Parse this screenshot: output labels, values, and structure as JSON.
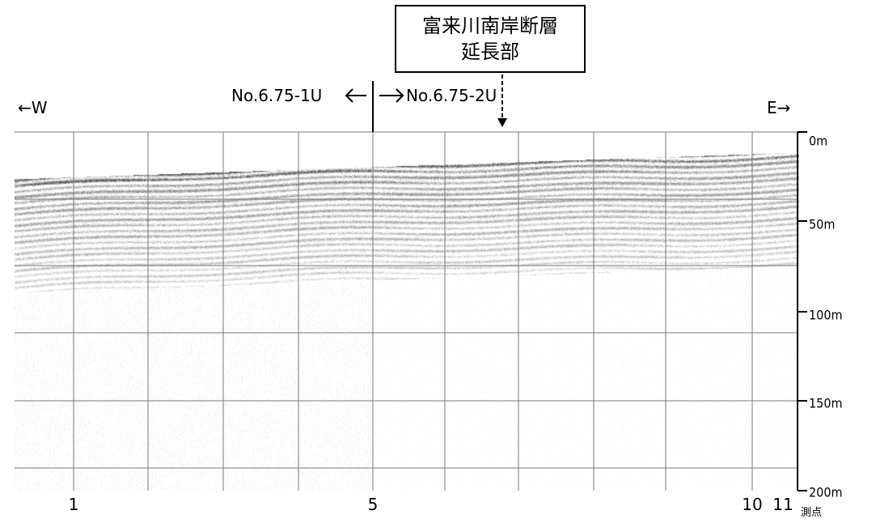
{
  "fault_label": {
    "line1": "富来川南岸断層",
    "line2": "延長部"
  },
  "direction": {
    "west": "←W",
    "east": "E→"
  },
  "survey_lines": {
    "left": "No.6.75-1U",
    "right": "No.6.75-2U"
  },
  "depth_axis": {
    "ticks": [
      "0m",
      "50m",
      "100m",
      "150m",
      "200m"
    ]
  },
  "station_axis": {
    "ticks": [
      "1",
      "5",
      "10",
      "11"
    ],
    "unit": "測点"
  },
  "colors": {
    "ink": "#000000",
    "grid": "#808080",
    "background": "#ffffff"
  },
  "icons": {
    "left_arrow": "left-arrow-icon",
    "right_arrow": "right-arrow-icon",
    "down_arrow": "down-arrow-icon"
  }
}
